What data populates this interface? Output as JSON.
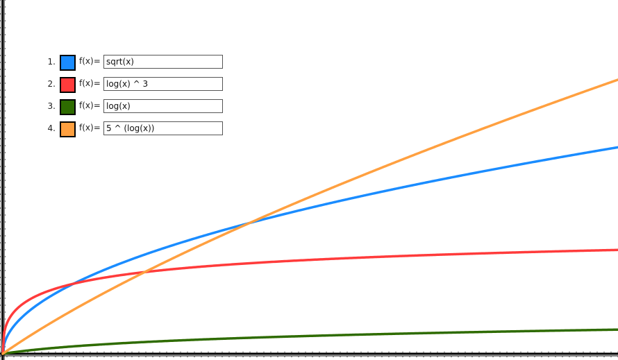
{
  "functions": [
    {
      "index": "1.",
      "label": "f(x)=",
      "expression": "sqrt(x)",
      "color": "#1a8cff",
      "color_name": "blue"
    },
    {
      "index": "2.",
      "label": "f(x)=",
      "expression": "log(x) ^ 3",
      "color": "#ff3b3b",
      "color_name": "red"
    },
    {
      "index": "3.",
      "label": "f(x)=",
      "expression": "log(x)",
      "color": "#2e6b00",
      "color_name": "dark-green"
    },
    {
      "index": "4.",
      "label": "f(x)=",
      "expression": "5 ^ (log(x))",
      "color": "#ffa040",
      "color_name": "orange"
    }
  ],
  "chart_data": {
    "type": "line",
    "series": [
      {
        "expression": "sqrt(x)",
        "color": "#1a8cff"
      },
      {
        "expression": "log(x) ^ 3",
        "color": "#ff3b3b"
      },
      {
        "expression": "log(x)",
        "color": "#2e6b00"
      },
      {
        "expression": "5 ^ (log(x))",
        "color": "#ffa040"
      }
    ],
    "axes": {
      "x_axis": "bottom",
      "y_axis": "left",
      "ticks": true,
      "tick_labels": false
    },
    "grid": false
  }
}
